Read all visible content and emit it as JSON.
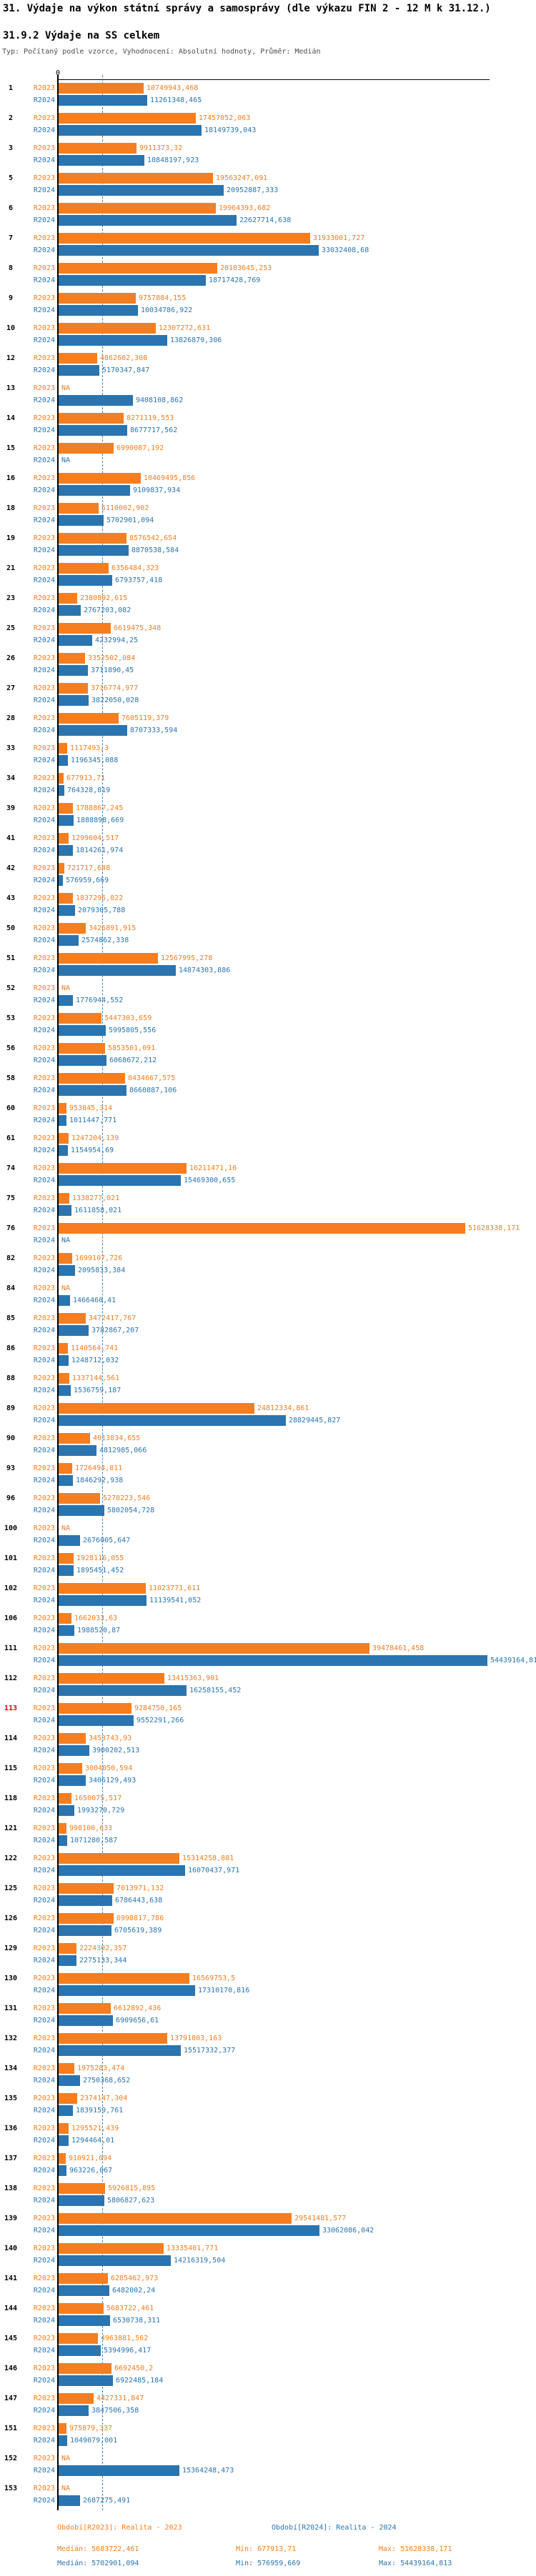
{
  "header": {
    "title": "31. Výdaje na výkon státní správy a samosprávy (dle výkazu FIN 2 - 12 M k 31.12.)",
    "subtitle": "31.9.2 Výdaje na SS celkem",
    "meta": "Typ: Počítaný podle vzorce, Vyhodnocení: Absolutní hodnoty, Průměr: Medián"
  },
  "axis": {
    "zero": "0"
  },
  "colors": {
    "r2023": "#f57e20",
    "r2024": "#2a74b0",
    "median_line": "#4384bf",
    "highlight_number": "#e00000"
  },
  "legend": {
    "r2023": "Období[R2023]: Realita - 2023",
    "r2024": "Období[R2024]: Realita - 2024"
  },
  "stats": {
    "r2023": {
      "median": "Medián: 5683722,461",
      "min": "Min: 677913,71",
      "max": "Max: 51628338,171"
    },
    "r2024": {
      "median": "Medián: 5702901,094",
      "min": "Min: 576959,669",
      "max": "Max: 54439164,813"
    }
  },
  "chart_data": {
    "type": "bar",
    "orientation": "horizontal",
    "title": "31.9.2 Výdaje na SS celkem",
    "value_format": "decimal comma, NA = missing value",
    "na_text": "NA",
    "median_reference": {
      "r2023": 5683722.461,
      "r2024": 5702901.094
    },
    "categories": [
      "1",
      "2",
      "3",
      "5",
      "6",
      "7",
      "8",
      "9",
      "10",
      "12",
      "13",
      "14",
      "15",
      "16",
      "18",
      "19",
      "21",
      "23",
      "25",
      "26",
      "27",
      "28",
      "33",
      "34",
      "39",
      "41",
      "42",
      "43",
      "50",
      "51",
      "52",
      "53",
      "56",
      "58",
      "60",
      "61",
      "74",
      "75",
      "76",
      "82",
      "84",
      "85",
      "86",
      "88",
      "89",
      "90",
      "93",
      "96",
      "100",
      "101",
      "102",
      "106",
      "111",
      "112",
      "113",
      "114",
      "115",
      "118",
      "121",
      "122",
      "125",
      "126",
      "129",
      "130",
      "131",
      "132",
      "134",
      "135",
      "136",
      "137",
      "138",
      "139",
      "140",
      "141",
      "144",
      "145",
      "146",
      "147",
      "151",
      "152",
      "153"
    ],
    "red_categories": [
      "113"
    ],
    "series": [
      {
        "name": "R2023",
        "labels": [
          "10749943,468",
          "17457052,063",
          "9911373,32",
          "19563247,091",
          "19964393,682",
          "31933001,727",
          "20103645,253",
          "9757884,155",
          "12307272,631",
          "4862602,308",
          "NA",
          "8271119,553",
          "6990087,192",
          "10469495,856",
          "5110002,902",
          "8576542,654",
          "6356484,323",
          "2380892,615",
          "6619475,348",
          "3352502,084",
          "3716774,977",
          "7605119,379",
          "1117493,3",
          "677913,71",
          "1788867,245",
          "1299604,517",
          "721717,648",
          "1837295,022",
          "3426891,915",
          "12567995,278",
          "NA",
          "5447303,659",
          "5853501,091",
          "8434667,575",
          "953845,314",
          "1247204,139",
          "16211471,16",
          "1338277,021",
          "51628338,171",
          "1699107,726",
          "NA",
          "3472417,767",
          "1140564,741",
          "1337144,561",
          "24812334,861",
          "4013834,655",
          "1726494,811",
          "5278223,546",
          "NA",
          "1928116,055",
          "11023771,611",
          "1662033,63",
          "39478461,458",
          "13415363,901",
          "9284750,165",
          "3453743,93",
          "3004050,594",
          "1650075,517",
          "998100,633",
          "15314258,881",
          "7013971,132",
          "6998817,786",
          "2224302,357",
          "16569753,5",
          "6612892,436",
          "13791803,163",
          "1975283,474",
          "2374147,304",
          "1295521,439",
          "910921,094",
          "5926815,895",
          "29541481,577",
          "13335401,771",
          "6285462,973",
          "5683722,461",
          "4963881,562",
          "6692450,2",
          "4427331,847",
          "975879,337",
          "NA",
          "NA"
        ]
      },
      {
        "name": "R2024",
        "labels": [
          "11261348,465",
          "18149739,043",
          "10848197,923",
          "20952887,333",
          "22627714,638",
          "33032408,68",
          "18717428,769",
          "10034786,922",
          "13826879,306",
          "5170347,847",
          "9408108,862",
          "8677717,562",
          "NA",
          "9109837,934",
          "5702901,094",
          "8870538,584",
          "6793757,418",
          "2767203,082",
          "4232994,25",
          "3711890,45",
          "3822050,028",
          "8707333,594",
          "1196345,088",
          "764328,819",
          "1888898,669",
          "1814261,974",
          "576959,669",
          "2079305,788",
          "2574862,338",
          "14874303,886",
          "1776944,552",
          "5995805,556",
          "6068672,212",
          "8660887,106",
          "1011447,771",
          "1154954,69",
          "15469300,655",
          "1611858,021",
          "NA",
          "2095833,384",
          "1466460,41",
          "3782867,207",
          "1248712,032",
          "1536759,187",
          "28829445,827",
          "4812985,066",
          "1846292,938",
          "5802054,728",
          "2676005,647",
          "1895451,452",
          "11139541,052",
          "1988520,87",
          "54439164,81",
          "16258155,452",
          "9552291,266",
          "3900202,513",
          "3406129,493",
          "1993270,729",
          "1071280,587",
          "16070437,971",
          "6786443,638",
          "6705619,389",
          "2275133,344",
          "17310170,816",
          "6909656,61",
          "15517332,377",
          "2750368,652",
          "1839159,761",
          "1294464,01",
          "963226,067",
          "5806827,623",
          "33062086,042",
          "14216319,504",
          "6482002,24",
          "6530738,311",
          "5394996,417",
          "6922485,184",
          "3847506,358",
          "1049079,001",
          "15364248,473",
          "2687275,491"
        ]
      }
    ]
  }
}
